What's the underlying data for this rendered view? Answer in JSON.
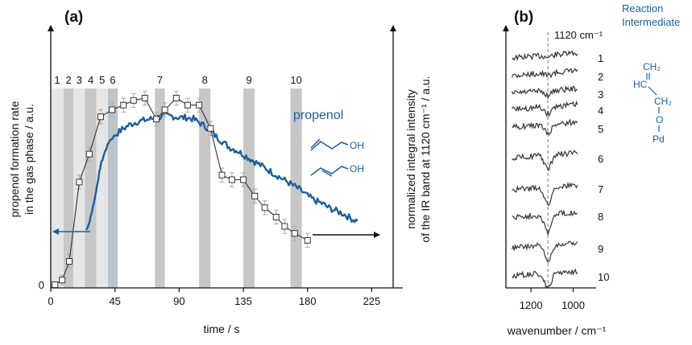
{
  "chart_data": [
    {
      "type": "line",
      "panel_label": "(a)",
      "xlabel": "time / s",
      "ylabel_left": [
        "propenol formation rate",
        "in the gas phase / a.u."
      ],
      "ylabel_right": [
        "normalized integral intensity",
        "of the IR band at 1120 cm⁻¹ / a.u."
      ],
      "y_zero_label": "0",
      "xlim": [
        0,
        240
      ],
      "x_ticks": [
        0,
        45,
        90,
        135,
        180,
        225
      ],
      "x_tick_labels": [
        "0",
        "45",
        "90",
        "135",
        "180",
        "225"
      ],
      "legend_text": "propenol",
      "time_windows": [
        {
          "label": "1",
          "start": 0,
          "end": 9,
          "shade": "#e6e6e6"
        },
        {
          "label": "2",
          "start": 9,
          "end": 16,
          "shade": "#c7c7c7"
        },
        {
          "label": "3",
          "start": 16,
          "end": 24,
          "shade": "#e6e6e6"
        },
        {
          "label": "4",
          "start": 24,
          "end": 32,
          "shade": "#c7c7c7"
        },
        {
          "label": "5",
          "start": 32,
          "end": 40,
          "shade": "#e6e6e6"
        },
        {
          "label": "6",
          "start": 40,
          "end": 47,
          "shade": "#bcc5cc"
        },
        {
          "label": "7",
          "start": 73,
          "end": 80,
          "shade": "#c7c7c7"
        },
        {
          "label": "8",
          "start": 104,
          "end": 112,
          "shade": "#c7c7c7"
        },
        {
          "label": "9",
          "start": 135,
          "end": 143,
          "shade": "#c7c7c7"
        },
        {
          "label": "10",
          "start": 168,
          "end": 176,
          "shade": "#c7c7c7"
        }
      ],
      "series": [
        {
          "marker": "square",
          "color": "#333333",
          "y_axis": "left",
          "x": [
            3,
            8,
            13,
            20,
            27,
            35,
            43,
            51,
            58,
            66,
            74,
            80,
            88,
            96,
            104,
            112,
            120,
            127,
            135,
            143,
            150,
            158,
            164,
            171,
            180
          ],
          "y": [
            0.0,
            0.02,
            0.1,
            0.44,
            0.56,
            0.72,
            0.75,
            0.77,
            0.79,
            0.8,
            0.71,
            0.75,
            0.8,
            0.77,
            0.77,
            0.67,
            0.47,
            0.45,
            0.45,
            0.38,
            0.33,
            0.29,
            0.25,
            0.22,
            0.19
          ],
          "y_err": [
            0.0,
            0.02,
            0.03,
            0.03,
            0.03,
            0.03,
            0.03,
            0.03,
            0.03,
            0.03,
            0.03,
            0.03,
            0.03,
            0.03,
            0.03,
            0.03,
            0.03,
            0.03,
            0.03,
            0.03,
            0.03,
            0.03,
            0.03,
            0.03,
            0.03
          ]
        },
        {
          "color": "#1a5f9e",
          "y_axis": "right",
          "x": [
            25,
            27,
            29,
            31,
            33,
            35,
            38,
            41,
            45,
            50,
            55,
            60,
            65,
            70,
            75,
            80,
            85,
            90,
            95,
            100,
            105,
            110,
            115,
            120,
            125,
            130,
            135,
            140,
            145,
            150,
            155,
            160,
            165,
            170,
            175,
            180,
            185,
            190,
            195,
            200,
            205,
            210,
            215
          ],
          "y": [
            0.0,
            0.05,
            0.13,
            0.22,
            0.33,
            0.44,
            0.53,
            0.6,
            0.64,
            0.68,
            0.71,
            0.73,
            0.74,
            0.75,
            0.76,
            0.77,
            0.77,
            0.76,
            0.76,
            0.75,
            0.72,
            0.69,
            0.64,
            0.6,
            0.56,
            0.54,
            0.51,
            0.48,
            0.45,
            0.42,
            0.39,
            0.36,
            0.33,
            0.3,
            0.27,
            0.23,
            0.2,
            0.18,
            0.15,
            0.13,
            0.11,
            0.08,
            0.06
          ]
        }
      ]
    },
    {
      "type": "line",
      "panel_label": "(b)",
      "xlabel": "wavenumber / cm⁻¹",
      "x_ticks": [
        1200,
        1000
      ],
      "x_tick_labels": [
        "1200",
        "1000"
      ],
      "xlim": [
        1300,
        960
      ],
      "marker_line": {
        "x": 1120,
        "label": "1120 cm⁻¹"
      },
      "annotation_title": [
        "Reaction",
        "Intermediate"
      ],
      "structure_labels": {
        "ch2_top": "CH₂",
        "hc": "HC",
        "ch2_mid": "CH₂",
        "o": "O",
        "pd": "Pd"
      },
      "series_labels": [
        "1",
        "2",
        "3",
        "4",
        "5",
        "6",
        "7",
        "8",
        "9",
        "10"
      ],
      "dip_depth": [
        0.05,
        0.07,
        0.12,
        0.18,
        0.24,
        0.38,
        0.46,
        0.46,
        0.42,
        0.4
      ]
    }
  ]
}
